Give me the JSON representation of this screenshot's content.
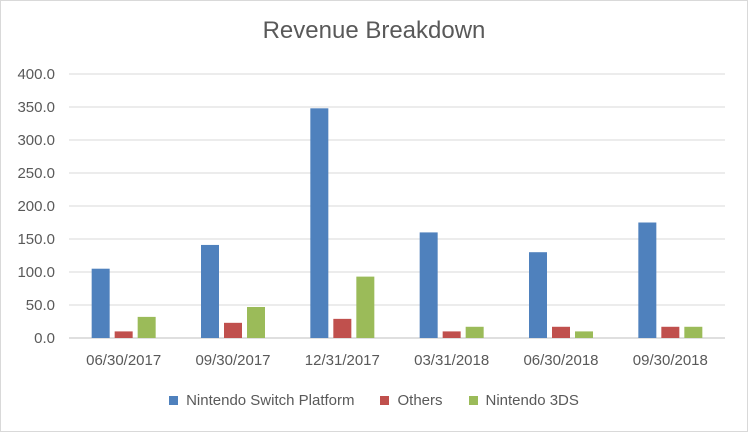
{
  "chart_data": {
    "type": "bar",
    "title": "Revenue Breakdown",
    "categories": [
      "06/30/2017",
      "09/30/2017",
      "12/31/2017",
      "03/31/2018",
      "06/30/2018",
      "09/30/2018"
    ],
    "series": [
      {
        "name": "Nintendo Switch Platform",
        "color": "#4f81bd",
        "values": [
          105,
          141,
          348,
          160,
          130,
          175
        ]
      },
      {
        "name": "Others",
        "color": "#c0504d",
        "values": [
          10,
          23,
          29,
          10,
          17,
          17
        ]
      },
      {
        "name": "Nintendo 3DS",
        "color": "#9bbb59",
        "values": [
          32,
          47,
          93,
          17,
          10,
          17
        ]
      }
    ],
    "yticks": [
      "0.0",
      "50.0",
      "100.0",
      "150.0",
      "200.0",
      "250.0",
      "300.0",
      "350.0",
      "400.0"
    ],
    "ylim": [
      0,
      400
    ],
    "xlabel": "",
    "ylabel": "",
    "grid": true,
    "legend": "bottom"
  }
}
